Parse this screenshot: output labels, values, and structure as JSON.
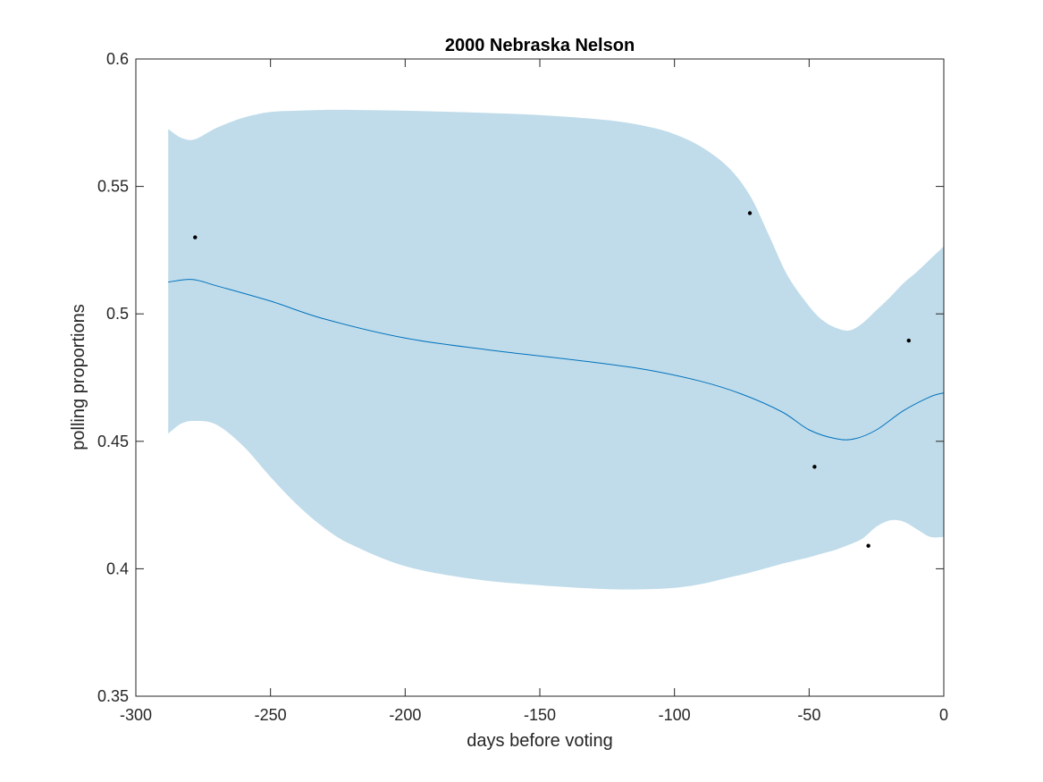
{
  "chart_data": {
    "type": "line",
    "title": "2000 Nebraska Nelson",
    "xlabel": "days before voting",
    "ylabel": "polling proportions",
    "xlim": [
      -300,
      0
    ],
    "ylim": [
      0.35,
      0.6
    ],
    "xticks": [
      -300,
      -250,
      -200,
      -150,
      -100,
      -50,
      0
    ],
    "xtick_labels": [
      "-300",
      "-250",
      "-200",
      "-150",
      "-100",
      "-50",
      "0"
    ],
    "yticks": [
      0.35,
      0.4,
      0.45,
      0.5,
      0.55,
      0.6
    ],
    "ytick_labels": [
      "0.35",
      "0.4",
      "0.45",
      "0.5",
      "0.55",
      "0.6"
    ],
    "grid": false,
    "colors": {
      "band": "#c0dcea",
      "line": "#0072bd",
      "points": "#000000",
      "axes": "#262626"
    },
    "series": [
      {
        "name": "mean",
        "x": [
          -288,
          -279,
          -270,
          -250,
          -230,
          -200,
          -170,
          -150,
          -130,
          -110,
          -90,
          -75,
          -60,
          -50,
          -40,
          -33,
          -25,
          -15,
          -5,
          0
        ],
        "y": [
          0.5125,
          0.5135,
          0.511,
          0.505,
          0.498,
          0.4905,
          0.486,
          0.4835,
          0.481,
          0.478,
          0.4735,
          0.4685,
          0.4615,
          0.4545,
          0.451,
          0.451,
          0.4545,
          0.462,
          0.4675,
          0.469
        ]
      }
    ],
    "band": {
      "name": "confidence interval",
      "x": [
        -288,
        -283,
        -278,
        -270,
        -260,
        -250,
        -240,
        -230,
        -220,
        -200,
        -175,
        -150,
        -125,
        -110,
        -100,
        -90,
        -80,
        -72,
        -65,
        -58,
        -50,
        -45,
        -40,
        -35,
        -30,
        -25,
        -20,
        -15,
        -10,
        -5,
        0
      ],
      "upper": [
        0.5725,
        0.569,
        0.5685,
        0.573,
        0.577,
        0.5792,
        0.5797,
        0.58,
        0.58,
        0.5797,
        0.579,
        0.578,
        0.576,
        0.5735,
        0.5705,
        0.5655,
        0.5575,
        0.5465,
        0.531,
        0.515,
        0.503,
        0.4975,
        0.4945,
        0.4935,
        0.4965,
        0.5015,
        0.5065,
        0.512,
        0.5165,
        0.5215,
        0.5265
      ],
      "lower": [
        0.453,
        0.457,
        0.458,
        0.4565,
        0.448,
        0.436,
        0.425,
        0.416,
        0.4095,
        0.401,
        0.396,
        0.3935,
        0.392,
        0.392,
        0.3925,
        0.394,
        0.3965,
        0.3985,
        0.4005,
        0.4025,
        0.4045,
        0.406,
        0.4075,
        0.4095,
        0.412,
        0.4165,
        0.419,
        0.4185,
        0.4155,
        0.4125,
        0.4125
      ]
    },
    "points": [
      {
        "x": -278,
        "y": 0.53
      },
      {
        "x": -72,
        "y": 0.5395
      },
      {
        "x": -13,
        "y": 0.4895
      },
      {
        "x": -48,
        "y": 0.44
      },
      {
        "x": -28,
        "y": 0.409
      }
    ]
  }
}
